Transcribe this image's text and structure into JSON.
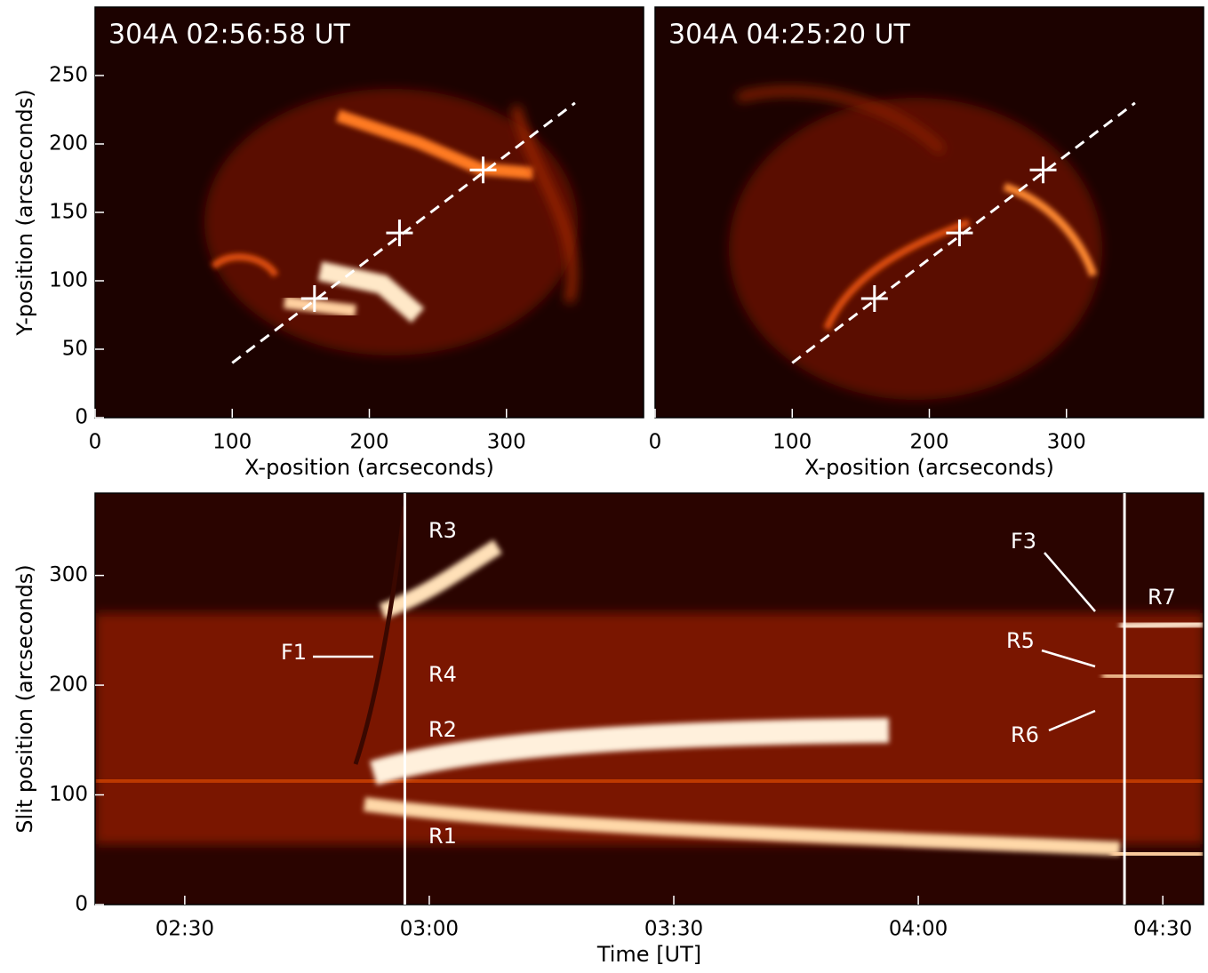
{
  "chart_data": [
    {
      "type": "image",
      "title": "304A 02:56:58 UT",
      "xlabel": "X-position (arcseconds)",
      "ylabel": "Y-position (arcseconds)",
      "xlim": [
        0,
        400
      ],
      "ylim": [
        0,
        300
      ],
      "xticks": [
        0,
        100,
        200,
        300
      ],
      "yticks": [
        0,
        50,
        100,
        150,
        200,
        250
      ],
      "slit": {
        "x": [
          100,
          350
        ],
        "y": [
          40,
          230
        ]
      },
      "markers": {
        "x": [
          160,
          222,
          283
        ],
        "y": [
          87,
          135,
          181
        ]
      }
    },
    {
      "type": "image",
      "title": "304A 04:25:20 UT",
      "xlabel": "X-position (arcseconds)",
      "xlim": [
        0,
        400
      ],
      "ylim": [
        0,
        300
      ],
      "xticks": [
        0,
        100,
        200,
        300
      ],
      "slit": {
        "x": [
          100,
          350
        ],
        "y": [
          40,
          230
        ]
      },
      "markers": {
        "x": [
          160,
          222,
          283
        ],
        "y": [
          87,
          135,
          181
        ]
      }
    },
    {
      "type": "timeslice",
      "xlabel": "Time [UT]",
      "ylabel": "Slit position (arcseconds)",
      "xlim": [
        139,
        275
      ],
      "ylim": [
        0,
        375
      ],
      "xticks": [
        {
          "value": 150,
          "label": "02:30"
        },
        {
          "value": 180,
          "label": "03:00"
        },
        {
          "value": 210,
          "label": "03:30"
        },
        {
          "value": 240,
          "label": "04:00"
        },
        {
          "value": 270,
          "label": "04:30"
        }
      ],
      "yticks": [
        0,
        100,
        200,
        300
      ],
      "vlines": [
        177,
        265.3
      ],
      "annotations": [
        "R3",
        "F1",
        "R4",
        "R2",
        "R1",
        "F3",
        "R5",
        "R6",
        "R7"
      ]
    }
  ]
}
